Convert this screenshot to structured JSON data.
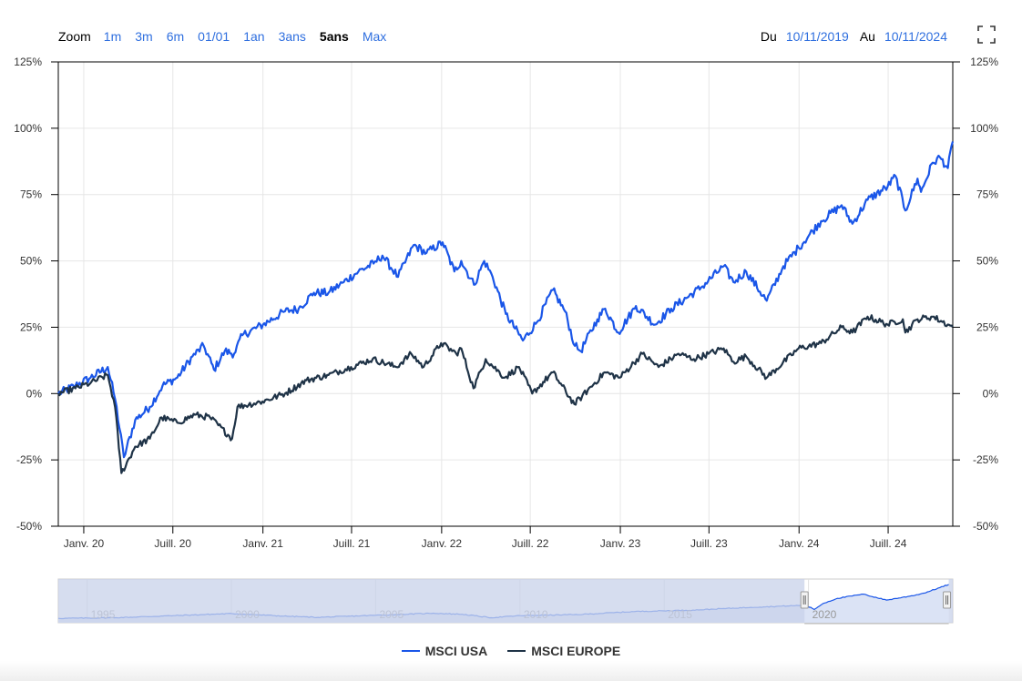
{
  "toolbar": {
    "zoom_label": "Zoom",
    "zoom_buttons": [
      "1m",
      "3m",
      "6m",
      "01/01",
      "1an",
      "3ans",
      "5ans",
      "Max"
    ],
    "active_zoom": "5ans",
    "from_label": "Du",
    "from_value": "10/11/2019",
    "to_label": "Au",
    "to_value": "10/11/2024",
    "fullscreen_icon": "fullscreen-icon"
  },
  "colors": {
    "msci_usa": "#1a56e8",
    "msci_europe": "#1f3347",
    "zoom_link": "#2f6fdf",
    "navigator_fill": "#dbe3f5",
    "navigator_mask": "#c8d2ea"
  },
  "chart_data": {
    "type": "line",
    "title": "",
    "xlabel": "",
    "ylabel": "",
    "x_range": [
      "2019-11-10",
      "2024-11-10"
    ],
    "ylim": [
      -50,
      125
    ],
    "y_ticks": [
      "125%",
      "100%",
      "75%",
      "50%",
      "25%",
      "0%",
      "-25%",
      "-50%"
    ],
    "y_tick_values": [
      125,
      100,
      75,
      50,
      25,
      0,
      -25,
      -50
    ],
    "x_tick_labels": [
      "Janv. 20",
      "Juill. 20",
      "Janv. 21",
      "Juill. 21",
      "Janv. 22",
      "Juill. 22",
      "Janv. 23",
      "Juill. 23",
      "Janv. 24",
      "Juill. 24"
    ],
    "x_tick_dates": [
      "2020-01-01",
      "2020-07-01",
      "2021-01-01",
      "2021-07-01",
      "2022-01-01",
      "2022-07-01",
      "2023-01-01",
      "2023-07-01",
      "2024-01-01",
      "2024-07-01"
    ],
    "grid": true,
    "legend_placement": "bottom-center",
    "series": [
      {
        "name": "MSCI USA",
        "points": [
          [
            "2019-11-10",
            0
          ],
          [
            "2019-12-15",
            3
          ],
          [
            "2020-01-15",
            6
          ],
          [
            "2020-02-19",
            10
          ],
          [
            "2020-03-05",
            -2
          ],
          [
            "2020-03-23",
            -24
          ],
          [
            "2020-04-15",
            -10
          ],
          [
            "2020-05-15",
            -5
          ],
          [
            "2020-06-10",
            3
          ],
          [
            "2020-07-10",
            6
          ],
          [
            "2020-08-10",
            14
          ],
          [
            "2020-09-02",
            18
          ],
          [
            "2020-09-23",
            9
          ],
          [
            "2020-10-15",
            16
          ],
          [
            "2020-11-03",
            15
          ],
          [
            "2020-11-20",
            22
          ],
          [
            "2021-01-01",
            26
          ],
          [
            "2021-02-15",
            31
          ],
          [
            "2021-03-15",
            32
          ],
          [
            "2021-04-15",
            38
          ],
          [
            "2021-05-15",
            38
          ],
          [
            "2021-06-15",
            42
          ],
          [
            "2021-07-15",
            46
          ],
          [
            "2021-08-15",
            49
          ],
          [
            "2021-09-02",
            52
          ],
          [
            "2021-10-04",
            44
          ],
          [
            "2021-11-05",
            56
          ],
          [
            "2021-12-01",
            53
          ],
          [
            "2022-01-03",
            57
          ],
          [
            "2022-01-27",
            46
          ],
          [
            "2022-02-10",
            50
          ],
          [
            "2022-03-08",
            41
          ],
          [
            "2022-03-29",
            50
          ],
          [
            "2022-04-15",
            44
          ],
          [
            "2022-05-12",
            30
          ],
          [
            "2022-06-16",
            20
          ],
          [
            "2022-07-15",
            27
          ],
          [
            "2022-08-16",
            39
          ],
          [
            "2022-09-10",
            31
          ],
          [
            "2022-09-30",
            18
          ],
          [
            "2022-10-12",
            16
          ],
          [
            "2022-11-15",
            28
          ],
          [
            "2022-12-01",
            32
          ],
          [
            "2022-12-28",
            23
          ],
          [
            "2023-02-02",
            33
          ],
          [
            "2023-03-13",
            26
          ],
          [
            "2023-04-15",
            32
          ],
          [
            "2023-06-15",
            40
          ],
          [
            "2023-07-31",
            48
          ],
          [
            "2023-08-20",
            42
          ],
          [
            "2023-09-15",
            46
          ],
          [
            "2023-10-27",
            35
          ],
          [
            "2023-11-30",
            48
          ],
          [
            "2023-12-31",
            55
          ],
          [
            "2024-02-15",
            65
          ],
          [
            "2024-03-28",
            71
          ],
          [
            "2024-04-19",
            64
          ],
          [
            "2024-05-20",
            73
          ],
          [
            "2024-06-30",
            78
          ],
          [
            "2024-07-16",
            82
          ],
          [
            "2024-08-05",
            69
          ],
          [
            "2024-08-30",
            81
          ],
          [
            "2024-09-06",
            76
          ],
          [
            "2024-09-30",
            87
          ],
          [
            "2024-10-15",
            89
          ],
          [
            "2024-10-31",
            85
          ],
          [
            "2024-11-10",
            95
          ]
        ]
      },
      {
        "name": "MSCI EUROPE",
        "points": [
          [
            "2019-11-10",
            0
          ],
          [
            "2019-12-15",
            2
          ],
          [
            "2020-01-15",
            4
          ],
          [
            "2020-02-19",
            7
          ],
          [
            "2020-03-05",
            -5
          ],
          [
            "2020-03-18",
            -30
          ],
          [
            "2020-04-15",
            -20
          ],
          [
            "2020-05-15",
            -17
          ],
          [
            "2020-06-08",
            -9
          ],
          [
            "2020-07-10",
            -11
          ],
          [
            "2020-08-15",
            -8
          ],
          [
            "2020-09-15",
            -9
          ],
          [
            "2020-10-30",
            -17
          ],
          [
            "2020-11-10",
            -5
          ],
          [
            "2020-12-31",
            -3
          ],
          [
            "2021-02-15",
            0
          ],
          [
            "2021-03-31",
            5
          ],
          [
            "2021-05-15",
            7
          ],
          [
            "2021-06-30",
            10
          ],
          [
            "2021-08-13",
            13
          ],
          [
            "2021-09-30",
            10
          ],
          [
            "2021-10-31",
            15
          ],
          [
            "2021-11-25",
            10
          ],
          [
            "2021-12-31",
            19
          ],
          [
            "2022-01-31",
            15
          ],
          [
            "2022-02-10",
            17
          ],
          [
            "2022-03-07",
            2
          ],
          [
            "2022-04-01",
            13
          ],
          [
            "2022-05-10",
            6
          ],
          [
            "2022-06-08",
            10
          ],
          [
            "2022-07-05",
            0
          ],
          [
            "2022-08-16",
            8
          ],
          [
            "2022-09-29",
            -4
          ],
          [
            "2022-10-15",
            -1
          ],
          [
            "2022-11-30",
            8
          ],
          [
            "2022-12-31",
            6
          ],
          [
            "2023-02-15",
            15
          ],
          [
            "2023-03-20",
            10
          ],
          [
            "2023-04-30",
            15
          ],
          [
            "2023-05-31",
            13
          ],
          [
            "2023-06-30",
            15
          ],
          [
            "2023-07-31",
            17
          ],
          [
            "2023-08-20",
            12
          ],
          [
            "2023-09-15",
            14
          ],
          [
            "2023-10-27",
            6
          ],
          [
            "2023-12-31",
            17
          ],
          [
            "2024-02-15",
            19
          ],
          [
            "2024-03-28",
            25
          ],
          [
            "2024-04-19",
            23
          ],
          [
            "2024-05-20",
            29
          ],
          [
            "2024-06-30",
            26
          ],
          [
            "2024-07-31",
            28
          ],
          [
            "2024-08-05",
            23
          ],
          [
            "2024-08-30",
            28
          ],
          [
            "2024-09-30",
            29
          ],
          [
            "2024-10-31",
            26
          ],
          [
            "2024-11-10",
            25
          ]
        ]
      }
    ]
  },
  "navigator": {
    "x_labels": [
      "1995",
      "2000",
      "2005",
      "2010",
      "2015",
      "2020"
    ],
    "x_label_years": [
      1995,
      2000,
      2005,
      2010,
      2015,
      2020
    ],
    "x_range_years": [
      1994,
      2025
    ],
    "selected_years": [
      2019.86,
      2024.86
    ],
    "series_points": [
      [
        1994,
        2
      ],
      [
        1996,
        4
      ],
      [
        1998,
        10
      ],
      [
        2000,
        16
      ],
      [
        2002,
        8
      ],
      [
        2003,
        5
      ],
      [
        2005,
        11
      ],
      [
        2007,
        17
      ],
      [
        2008,
        14
      ],
      [
        2009,
        4
      ],
      [
        2010,
        10
      ],
      [
        2012,
        13
      ],
      [
        2014,
        22
      ],
      [
        2016,
        26
      ],
      [
        2018,
        34
      ],
      [
        2019.9,
        40
      ],
      [
        2020.2,
        28
      ],
      [
        2020.5,
        45
      ],
      [
        2021,
        60
      ],
      [
        2021.9,
        72
      ],
      [
        2022.7,
        55
      ],
      [
        2023.5,
        66
      ],
      [
        2024,
        75
      ],
      [
        2024.86,
        100
      ]
    ]
  },
  "legend": {
    "items": [
      {
        "label": "MSCI USA",
        "color": "#1a56e8"
      },
      {
        "label": "MSCI EUROPE",
        "color": "#1f3347"
      }
    ]
  }
}
